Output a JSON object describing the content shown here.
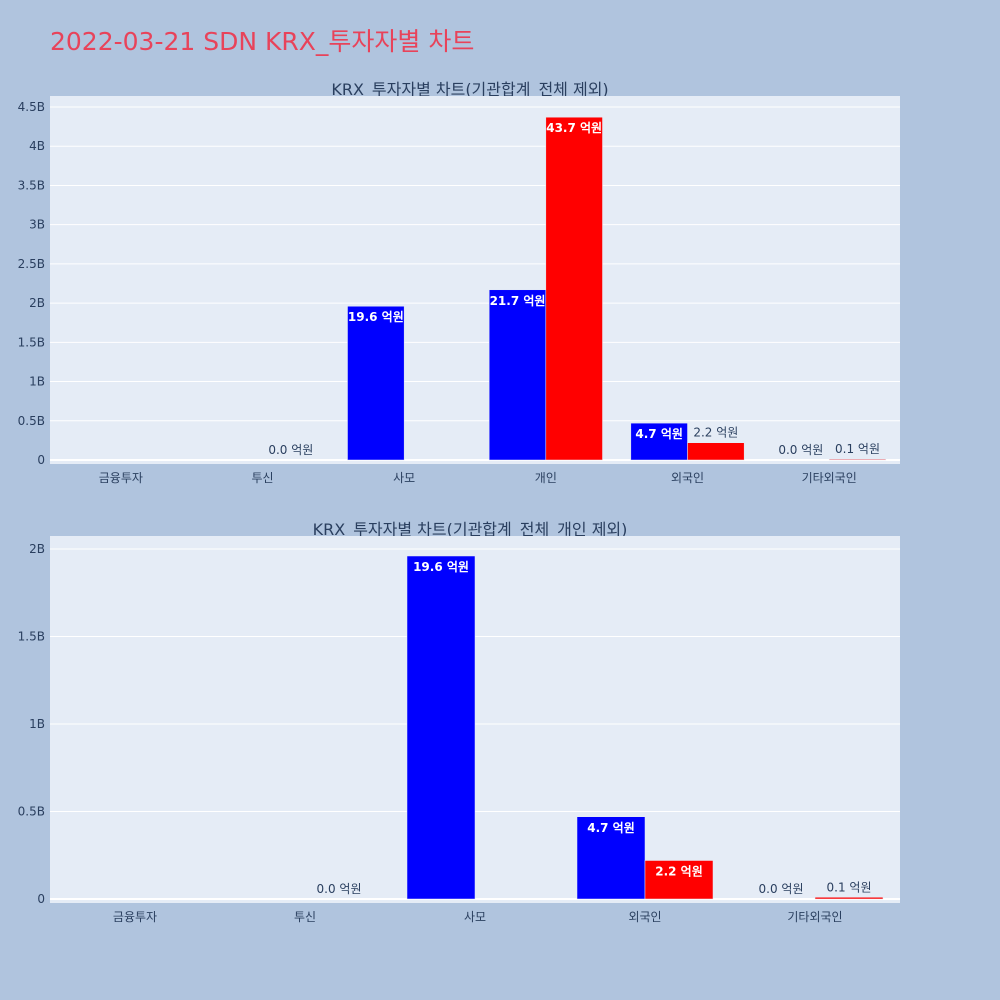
{
  "page_title": "2022-03-21 SDN KRX_투자자별 차트",
  "colors": {
    "background": "#b0c4de",
    "plot_background": "#e5ecf6",
    "title": "#e8435a",
    "buy": "#0000ff",
    "sell": "#ff0000"
  },
  "chart_data": [
    {
      "type": "bar",
      "title": "KRX_투자자별 차트(기관합계_전체 제외)",
      "categories": [
        "금융투자",
        "투신",
        "사모",
        "개인",
        "외국인",
        "기타외국인"
      ],
      "ylim": [
        0,
        4500000000
      ],
      "y_ticks": [
        0,
        500000000,
        1000000000,
        1500000000,
        2000000000,
        2500000000,
        3000000000,
        3500000000,
        4000000000,
        4500000000
      ],
      "y_tick_labels": [
        "0",
        "0.5B",
        "1B",
        "1.5B",
        "2B",
        "2.5B",
        "3B",
        "3.5B",
        "4B",
        "4.5B"
      ],
      "grid": true,
      "series": [
        {
          "color": "#0000ff",
          "values": [
            0,
            0,
            1960000000,
            2170000000,
            470000000,
            0
          ],
          "labels": [
            "",
            "",
            "19.6 억원",
            "21.7 억원",
            "4.7 억원",
            "0.0 억원"
          ]
        },
        {
          "color": "#ff0000",
          "values": [
            0,
            0,
            0,
            4370000000,
            220000000,
            10000000
          ],
          "labels": [
            "",
            "0.0 억원",
            "",
            "43.7 억원",
            "2.2 억원",
            "0.1 억원"
          ]
        }
      ]
    },
    {
      "type": "bar",
      "title": "KRX_투자자별 차트(기관합계_전체_개인 제외)",
      "categories": [
        "금융투자",
        "투신",
        "사모",
        "외국인",
        "기타외국인"
      ],
      "ylim": [
        0,
        2000000000
      ],
      "y_ticks": [
        0,
        500000000,
        1000000000,
        1500000000,
        2000000000
      ],
      "y_tick_labels": [
        "0",
        "0.5B",
        "1B",
        "1.5B",
        "2B"
      ],
      "grid": true,
      "series": [
        {
          "color": "#0000ff",
          "values": [
            0,
            0,
            1960000000,
            470000000,
            0
          ],
          "labels": [
            "",
            "",
            "19.6 억원",
            "4.7 억원",
            "0.0 억원"
          ]
        },
        {
          "color": "#ff0000",
          "values": [
            0,
            0,
            0,
            220000000,
            10000000
          ],
          "labels": [
            "",
            "0.0 억원",
            "",
            "2.2 억원",
            "0.1 억원"
          ]
        }
      ]
    }
  ]
}
